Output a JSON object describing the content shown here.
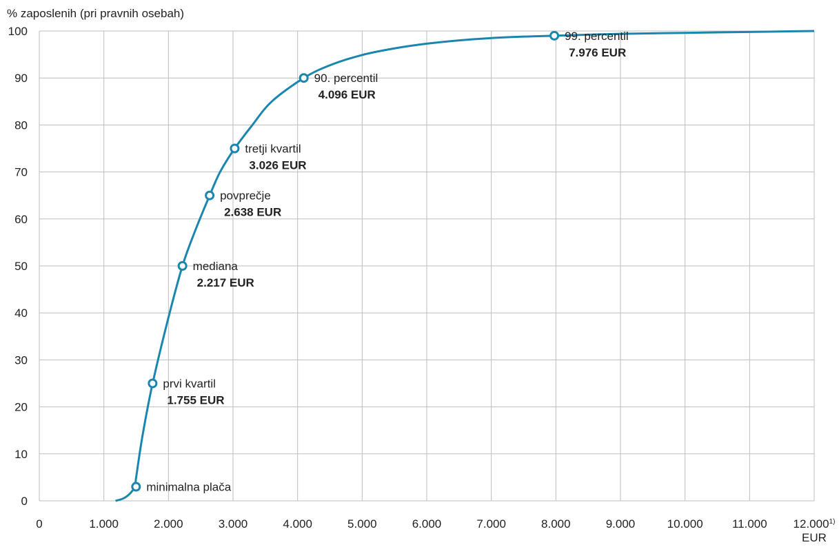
{
  "chart_data": {
    "type": "line",
    "ylabel": "% zaposlenih (pri pravnih osebah)",
    "xlabel": "EUR",
    "xlim": [
      0,
      12000
    ],
    "ylim": [
      0,
      100
    ],
    "x_ticks": [
      0,
      1000,
      2000,
      3000,
      4000,
      5000,
      6000,
      7000,
      8000,
      9000,
      10000,
      11000,
      12000
    ],
    "x_tick_labels": [
      "0",
      "1.000",
      "2.000",
      "3.000",
      "4.000",
      "5.000",
      "6.000",
      "7.000",
      "8.000",
      "9.000",
      "10.000",
      "11.000",
      "12.000"
    ],
    "x_last_tick_footnote": "1)",
    "y_ticks": [
      0,
      10,
      20,
      30,
      40,
      50,
      60,
      70,
      80,
      90,
      100
    ],
    "y_tick_labels": [
      "0",
      "10",
      "20",
      "30",
      "40",
      "50",
      "60",
      "70",
      "80",
      "90",
      "100"
    ],
    "grid": true,
    "legend": "none",
    "colors": {
      "curve": "#1a86ad",
      "grid": "#bdbdbd",
      "axis": "#555555"
    },
    "series": [
      {
        "x": [
          1180,
          1300,
          1400,
          1480,
          1500,
          1600,
          1755,
          2000,
          2217,
          2400,
          2638,
          2800,
          3026,
          3300,
          3600,
          4096,
          4500,
          5000,
          5500,
          6000,
          6500,
          7000,
          7500,
          7976,
          9000,
          10000,
          11000,
          12000
        ],
        "y": [
          0,
          0.5,
          1.5,
          3,
          5,
          14,
          25,
          39,
          50,
          57,
          65,
          70,
          75,
          80,
          85,
          90,
          92.7,
          94.9,
          96.3,
          97.3,
          98.0,
          98.5,
          98.8,
          99,
          99.4,
          99.6,
          99.8,
          100
        ]
      }
    ],
    "annotations": [
      {
        "x": 1498,
        "y": 3,
        "label": "minimalna plača",
        "value": ""
      },
      {
        "x": 1755,
        "y": 25,
        "label": "prvi kvartil",
        "value": "1.755 EUR"
      },
      {
        "x": 2217,
        "y": 50,
        "label": "mediana",
        "value": "2.217 EUR"
      },
      {
        "x": 2638,
        "y": 65,
        "label": "povprečje",
        "value": "2.638 EUR"
      },
      {
        "x": 3026,
        "y": 75,
        "label": "tretji kvartil",
        "value": "3.026 EUR"
      },
      {
        "x": 4096,
        "y": 90,
        "label": "90. percentil",
        "value": "4.096 EUR"
      },
      {
        "x": 7976,
        "y": 99,
        "label": "99. percentil",
        "value": "7.976 EUR"
      }
    ]
  }
}
